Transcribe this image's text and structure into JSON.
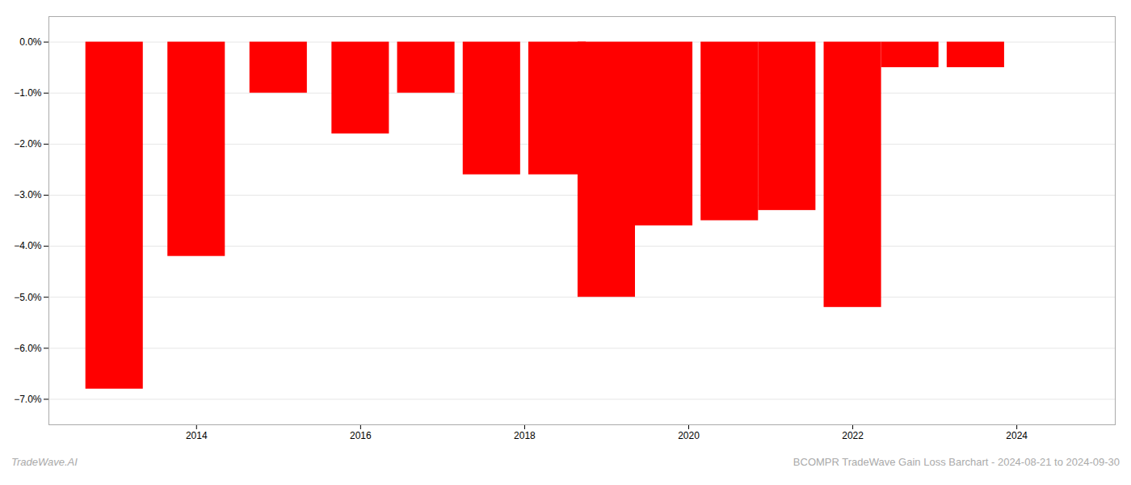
{
  "chart_data": {
    "type": "bar",
    "title": "BCOMPR TradeWave Gain Loss Barchart - 2024-08-21 to 2024-09-30",
    "annotations": [
      "TradeWave.AI"
    ],
    "x": [
      2013,
      2014,
      2015,
      2016,
      2016.8,
      2017.6,
      2018.4,
      2019,
      2019.7,
      2020.5,
      2021.2,
      2022,
      2022.7,
      2023.5
    ],
    "values": [
      -0.068,
      -0.042,
      -0.01,
      -0.018,
      -0.01,
      -0.026,
      -0.026,
      -0.05,
      -0.036,
      -0.035,
      -0.033,
      -0.052,
      -0.005,
      -0.005
    ],
    "color": "#ff0000",
    "xlim": [
      2012.2,
      2025.2
    ],
    "xticks": [
      2014,
      2016,
      2018,
      2020,
      2022,
      2024
    ],
    "ylim": [
      -0.075,
      0.005
    ],
    "yticks": [
      {
        "value": 0.0,
        "label": "0.0%"
      },
      {
        "value": -0.01,
        "label": "−1.0%"
      },
      {
        "value": -0.02,
        "label": "−2.0%"
      },
      {
        "value": -0.03,
        "label": "−3.0%"
      },
      {
        "value": -0.04,
        "label": "−4.0%"
      },
      {
        "value": -0.05,
        "label": "−5.0%"
      },
      {
        "value": -0.06,
        "label": "−6.0%"
      },
      {
        "value": -0.07,
        "label": "−7.0%"
      }
    ],
    "grid": true
  }
}
